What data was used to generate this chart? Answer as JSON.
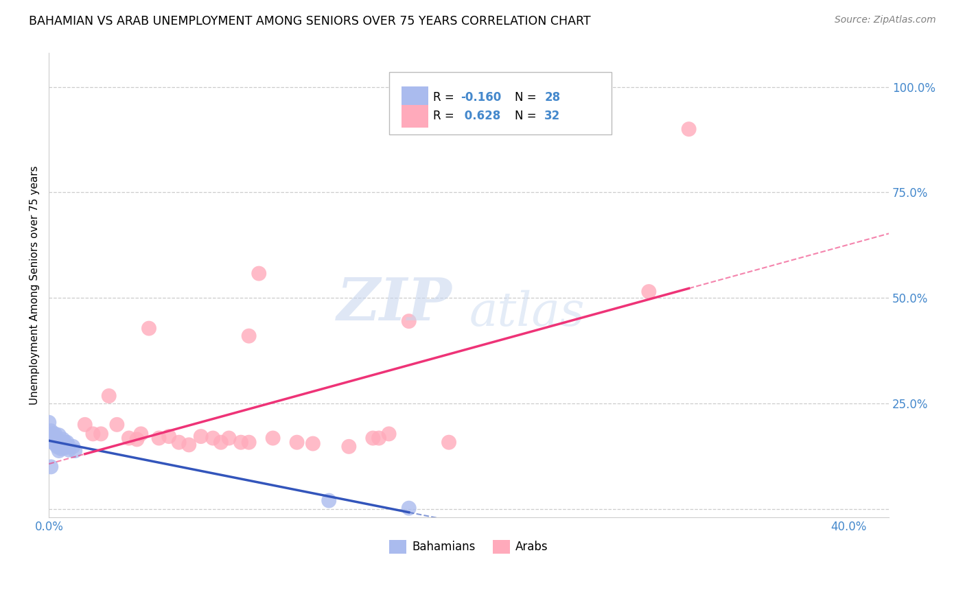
{
  "title": "BAHAMIAN VS ARAB UNEMPLOYMENT AMONG SENIORS OVER 75 YEARS CORRELATION CHART",
  "source": "Source: ZipAtlas.com",
  "ylabel": "Unemployment Among Seniors over 75 years",
  "xlim": [
    0.0,
    0.42
  ],
  "ylim": [
    -0.02,
    1.08
  ],
  "xtick_positions": [
    0.0,
    0.05,
    0.1,
    0.15,
    0.2,
    0.25,
    0.3,
    0.35,
    0.4
  ],
  "xtick_labels": [
    "0.0%",
    "",
    "",
    "",
    "",
    "",
    "",
    "",
    "40.0%"
  ],
  "ytick_positions": [
    0.0,
    0.25,
    0.5,
    0.75,
    1.0
  ],
  "ytick_labels": [
    "",
    "25.0%",
    "50.0%",
    "75.0%",
    "100.0%"
  ],
  "bahamian_color": "#aabbee",
  "arab_color": "#ffaabb",
  "bahamian_line_color": "#3355bb",
  "arab_line_color": "#ee3377",
  "tick_color": "#4488cc",
  "grid_color": "#cccccc",
  "background_color": "#ffffff",
  "bah_x": [
    0.0,
    0.001,
    0.001,
    0.002,
    0.002,
    0.003,
    0.003,
    0.003,
    0.004,
    0.004,
    0.005,
    0.005,
    0.005,
    0.005,
    0.006,
    0.006,
    0.007,
    0.007,
    0.008,
    0.008,
    0.009,
    0.01,
    0.01,
    0.012,
    0.013,
    0.14,
    0.18,
    0.001
  ],
  "bah_y": [
    0.205,
    0.185,
    0.165,
    0.178,
    0.158,
    0.178,
    0.168,
    0.155,
    0.168,
    0.148,
    0.175,
    0.16,
    0.148,
    0.138,
    0.158,
    0.143,
    0.165,
    0.148,
    0.158,
    0.145,
    0.158,
    0.148,
    0.14,
    0.148,
    0.138,
    0.02,
    0.002,
    0.1
  ],
  "arab_x": [
    0.018,
    0.022,
    0.026,
    0.03,
    0.034,
    0.04,
    0.044,
    0.046,
    0.05,
    0.055,
    0.06,
    0.065,
    0.07,
    0.076,
    0.082,
    0.086,
    0.09,
    0.096,
    0.1,
    0.1,
    0.105,
    0.112,
    0.124,
    0.132,
    0.15,
    0.162,
    0.165,
    0.17,
    0.18,
    0.2,
    0.3,
    0.32
  ],
  "arab_y": [
    0.2,
    0.178,
    0.178,
    0.268,
    0.2,
    0.168,
    0.165,
    0.178,
    0.428,
    0.168,
    0.172,
    0.158,
    0.152,
    0.172,
    0.168,
    0.158,
    0.168,
    0.158,
    0.41,
    0.158,
    0.558,
    0.168,
    0.158,
    0.155,
    0.148,
    0.168,
    0.168,
    0.178,
    0.445,
    0.158,
    0.515,
    0.9
  ],
  "legend_R_bah": "-0.160",
  "legend_N_bah": "28",
  "legend_R_arab": "0.628",
  "legend_N_arab": "32"
}
